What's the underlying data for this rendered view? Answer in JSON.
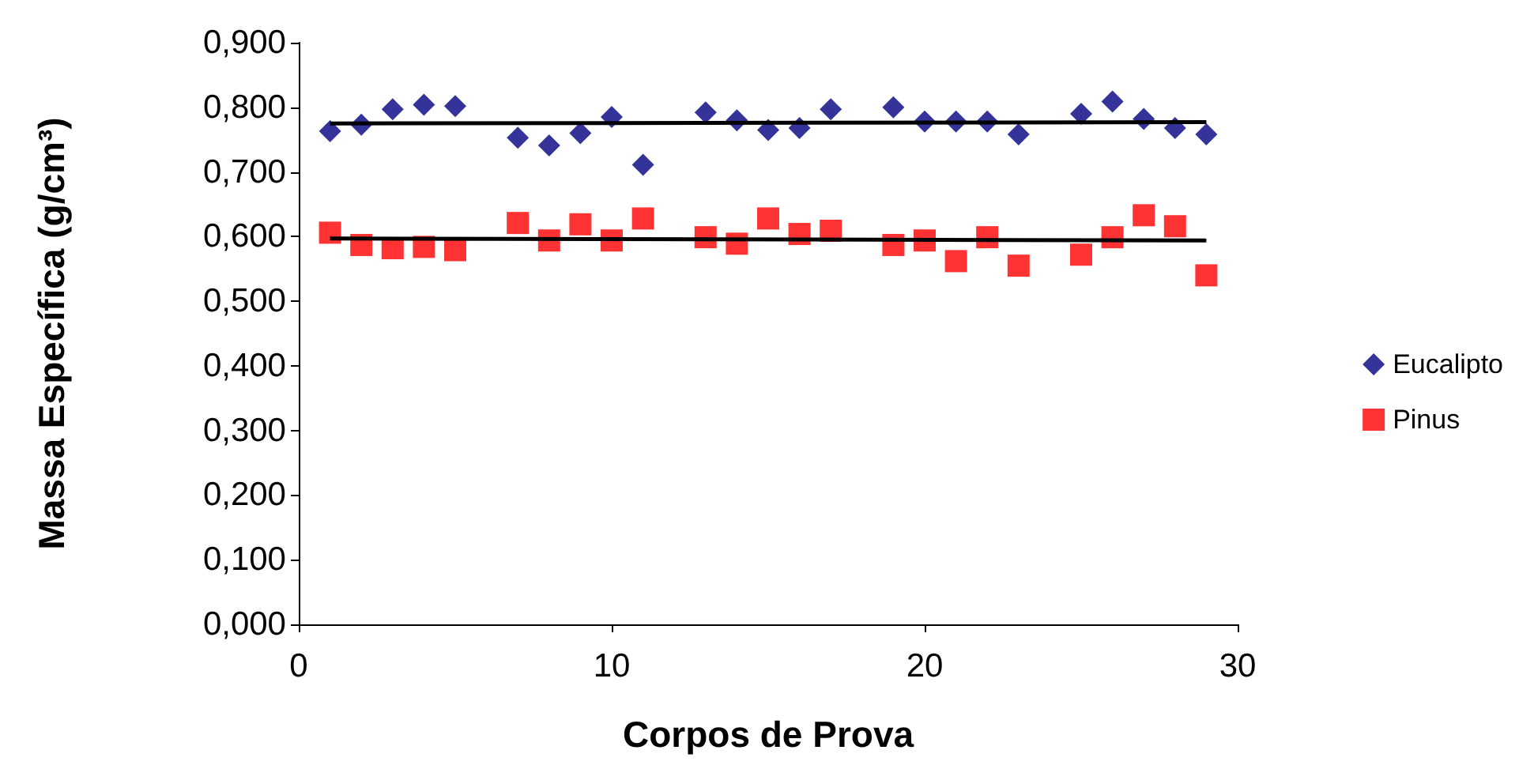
{
  "chart_data": {
    "type": "scatter",
    "xlabel": "Corpos de Prova",
    "ylabel": "Massa Específica (g/cm³)",
    "xlim": [
      0,
      30
    ],
    "xticks": [
      0,
      10,
      20,
      30
    ],
    "ylim": [
      0,
      0.9
    ],
    "yticks": [
      {
        "value": 0,
        "label": "0,000"
      },
      {
        "value": 0.1,
        "label": "0,100"
      },
      {
        "value": 0.2,
        "label": "0,200"
      },
      {
        "value": 0.3,
        "label": "0,300"
      },
      {
        "value": 0.4,
        "label": "0,400"
      },
      {
        "value": 0.5,
        "label": "0,500"
      },
      {
        "value": 0.6,
        "label": "0,600"
      },
      {
        "value": 0.7,
        "label": "0,700"
      },
      {
        "value": 0.8,
        "label": "0,800"
      },
      {
        "value": 0.9,
        "label": "0,900"
      }
    ],
    "grid": false,
    "legend": "right",
    "series": [
      {
        "name": "Eucalipto",
        "color": "#000080",
        "marker": "diamond",
        "x": [
          1,
          2,
          3,
          4,
          5,
          7,
          8,
          9,
          10,
          11,
          13,
          14,
          15,
          16,
          17,
          19,
          20,
          21,
          22,
          23,
          25,
          26,
          27,
          28,
          29
        ],
        "values": [
          0.763,
          0.773,
          0.797,
          0.804,
          0.802,
          0.753,
          0.741,
          0.76,
          0.785,
          0.711,
          0.792,
          0.78,
          0.765,
          0.768,
          0.797,
          0.8,
          0.778,
          0.778,
          0.778,
          0.758,
          0.79,
          0.809,
          0.782,
          0.768,
          0.758
        ]
      },
      {
        "name": "Pinus",
        "color": "#ff0000",
        "marker": "square",
        "x": [
          1,
          2,
          3,
          4,
          5,
          7,
          8,
          9,
          10,
          11,
          13,
          14,
          15,
          16,
          17,
          19,
          20,
          21,
          22,
          23,
          25,
          26,
          27,
          28,
          29
        ],
        "values": [
          0.606,
          0.587,
          0.582,
          0.584,
          0.579,
          0.621,
          0.594,
          0.619,
          0.594,
          0.628,
          0.599,
          0.589,
          0.628,
          0.604,
          0.609,
          0.587,
          0.594,
          0.562,
          0.599,
          0.555,
          0.572,
          0.599,
          0.633,
          0.616,
          0.54
        ]
      },
      {
        "type": "line",
        "color": "#000000",
        "marker": "none",
        "x": [
          1,
          29
        ],
        "values": [
          0.775,
          0.777
        ]
      },
      {
        "type": "line",
        "color": "#000000",
        "marker": "none",
        "x": [
          1,
          29
        ],
        "values": [
          0.597,
          0.594
        ]
      }
    ]
  }
}
